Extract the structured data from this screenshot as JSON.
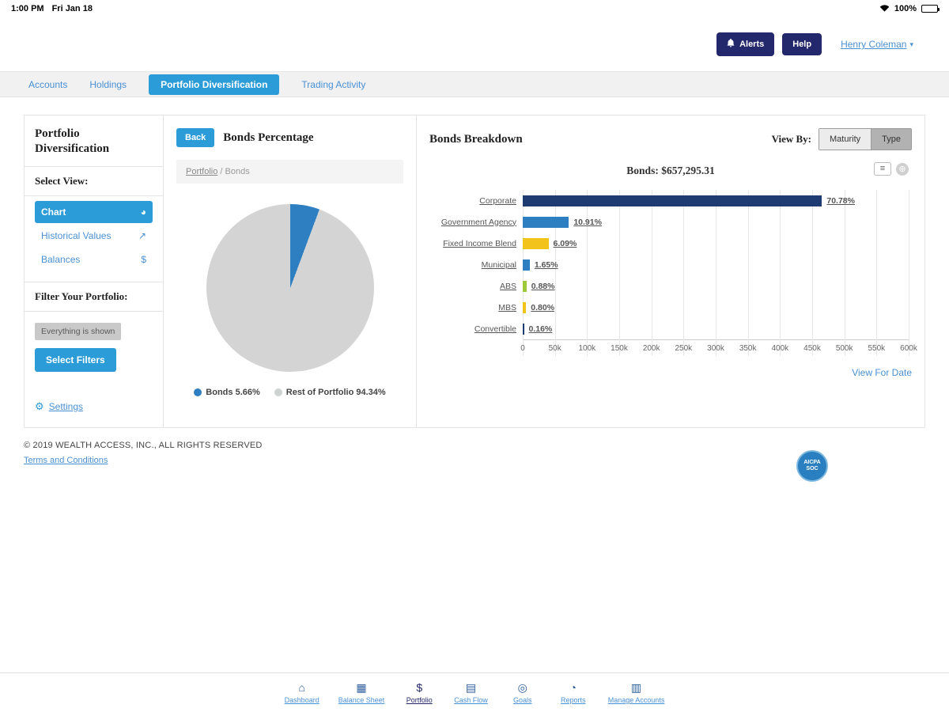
{
  "status_bar": {
    "time": "1:00 PM",
    "date": "Fri Jan 18",
    "battery_level": "100%"
  },
  "header": {
    "alerts_label": "Alerts",
    "help_label": "Help",
    "user_name": "Henry Coleman"
  },
  "nav": {
    "tabs": [
      {
        "label": "Accounts",
        "active": false
      },
      {
        "label": "Holdings",
        "active": false
      },
      {
        "label": "Portfolio Diversification",
        "active": true
      },
      {
        "label": "Trading Activity",
        "active": false
      }
    ]
  },
  "sidebar": {
    "title": "Portfolio Diversification",
    "select_view_label": "Select View:",
    "views": [
      {
        "label": "Chart",
        "icon": "pie-chart-icon",
        "active": true
      },
      {
        "label": "Historical Values",
        "icon": "line-chart-icon",
        "active": false
      },
      {
        "label": "Balances",
        "icon": "dollar-icon",
        "active": false
      }
    ],
    "filter_label": "Filter Your Portfolio:",
    "filter_status": "Everything is shown",
    "select_filters_label": "Select Filters",
    "settings_icon": "gear-icon",
    "settings_label": "Settings"
  },
  "pie_panel": {
    "back_label": "Back",
    "title": "Bonds Percentage",
    "breadcrumb": {
      "parent": "Portfolio",
      "separator": "/",
      "current": "Bonds"
    },
    "legend": [
      {
        "label": "Bonds 5.66%",
        "color": "#2d7fc1"
      },
      {
        "label": "Rest of Portfolio 94.34%",
        "color": "#cfd2d3"
      }
    ]
  },
  "bonds_panel": {
    "title": "Bonds Breakdown",
    "view_by_label": "View By:",
    "view_options": [
      {
        "label": "Maturity",
        "selected": false
      },
      {
        "label": "Type",
        "selected": true
      }
    ],
    "view_for_date_label": "View For Date"
  },
  "chart_data": [
    {
      "type": "pie",
      "title": "Bonds Percentage",
      "slices": [
        {
          "label": "Bonds",
          "value": 5.66,
          "color": "#2d7fc1"
        },
        {
          "label": "Rest of Portfolio",
          "value": 94.34,
          "color": "#d4d4d4"
        }
      ],
      "legend_position": "bottom"
    },
    {
      "type": "bar",
      "orientation": "horizontal",
      "title": "Bonds: $657,295.31",
      "total_label": "$657,295.31",
      "categories": [
        "Corporate",
        "Government Agency",
        "Fixed Income Blend",
        "Municipal",
        "ABS",
        "MBS",
        "Convertible"
      ],
      "values": [
        465233,
        71711,
        40029,
        10845,
        5784,
        5258,
        1052
      ],
      "value_labels": [
        "70.78%",
        "10.91%",
        "6.09%",
        "1.65%",
        "0.88%",
        "0.80%",
        "0.16%"
      ],
      "colors": [
        "#1f3c72",
        "#2d7fc1",
        "#f2c31b",
        "#2d7fc1",
        "#9dc93b",
        "#f2c31b",
        "#1f3c72"
      ],
      "xlim": [
        0,
        600000
      ],
      "x_ticks": [
        "0",
        "50k",
        "100k",
        "150k",
        "200k",
        "250k",
        "300k",
        "350k",
        "400k",
        "450k",
        "500k",
        "550k",
        "600k"
      ],
      "grid": true,
      "legend_position": "none"
    }
  ],
  "footer": {
    "copyright": "© 2019 WEALTH ACCESS, INC., ALL RIGHTS RESERVED",
    "terms_label": "Terms and Conditions",
    "badge_line1": "AICPA",
    "badge_line2": "SOC"
  },
  "bottom_nav": {
    "items": [
      {
        "label": "Dashboard",
        "icon": "home-icon",
        "active": false
      },
      {
        "label": "Balance Sheet",
        "icon": "balance-sheet-icon",
        "active": false
      },
      {
        "label": "Portfolio",
        "icon": "dollar-icon",
        "active": true
      },
      {
        "label": "Cash Flow",
        "icon": "cash-flow-icon",
        "active": false
      },
      {
        "label": "Goals",
        "icon": "goals-icon",
        "active": false
      },
      {
        "label": "Reports",
        "icon": "reports-icon",
        "active": false
      },
      {
        "label": "Manage Accounts",
        "icon": "manage-accounts-icon",
        "active": false
      }
    ]
  }
}
